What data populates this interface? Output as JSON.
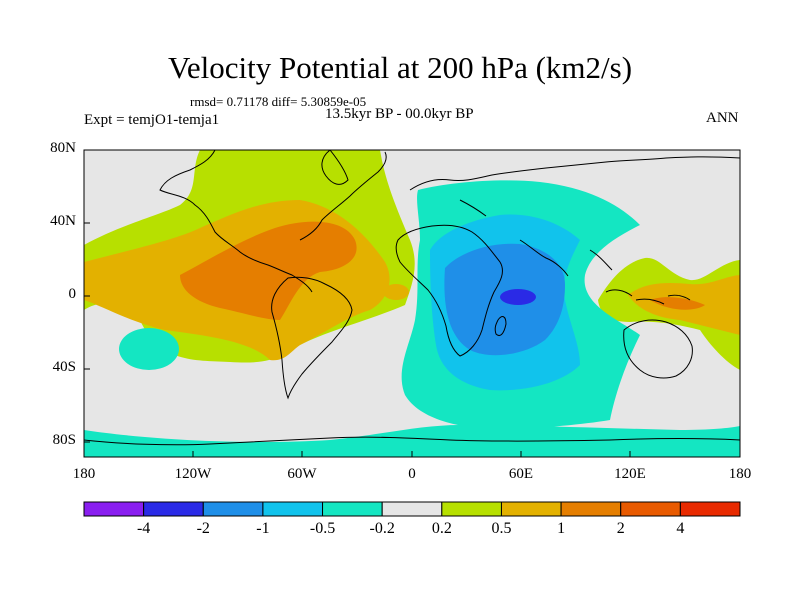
{
  "title": "Velocity Potential at 200 hPa (km2/s)",
  "stats": "rmsd= 0.71178 diff= 5.30859e-05",
  "experiment": "Expt = temjO1-temja1",
  "period": "13.5kyr BP - 00.0kyr BP",
  "season": "ANN",
  "axes": {
    "lat_labels": [
      "80N",
      "40N",
      "0",
      "40S",
      "80S"
    ],
    "lon_labels": [
      "180",
      "120W",
      "60W",
      "0",
      "60E",
      "120E",
      "180"
    ]
  },
  "colorbar": {
    "colors": [
      "#8a1ff0",
      "#2a2ae6",
      "#1f8fe8",
      "#11c3ec",
      "#14e6c2",
      "#e6e6e6",
      "#b7e000",
      "#e3b100",
      "#e57e00",
      "#e85a00",
      "#e82a00"
    ],
    "labels": [
      "-4",
      "-2",
      "-1",
      "-0.5",
      "-0.2",
      "0.2",
      "0.5",
      "1",
      "2",
      "4"
    ]
  },
  "legend_fields": {
    "neutral": "#e6e6e6",
    "pos_05": "#b7e000",
    "pos_1": "#e3b100",
    "pos_2": "#e57e00",
    "pos_4": "#e85a00",
    "neg_02": "#14e6c2",
    "neg_05": "#11c3ec",
    "neg_1": "#1f8fe8",
    "neg_2": "#2a2ae6"
  }
}
